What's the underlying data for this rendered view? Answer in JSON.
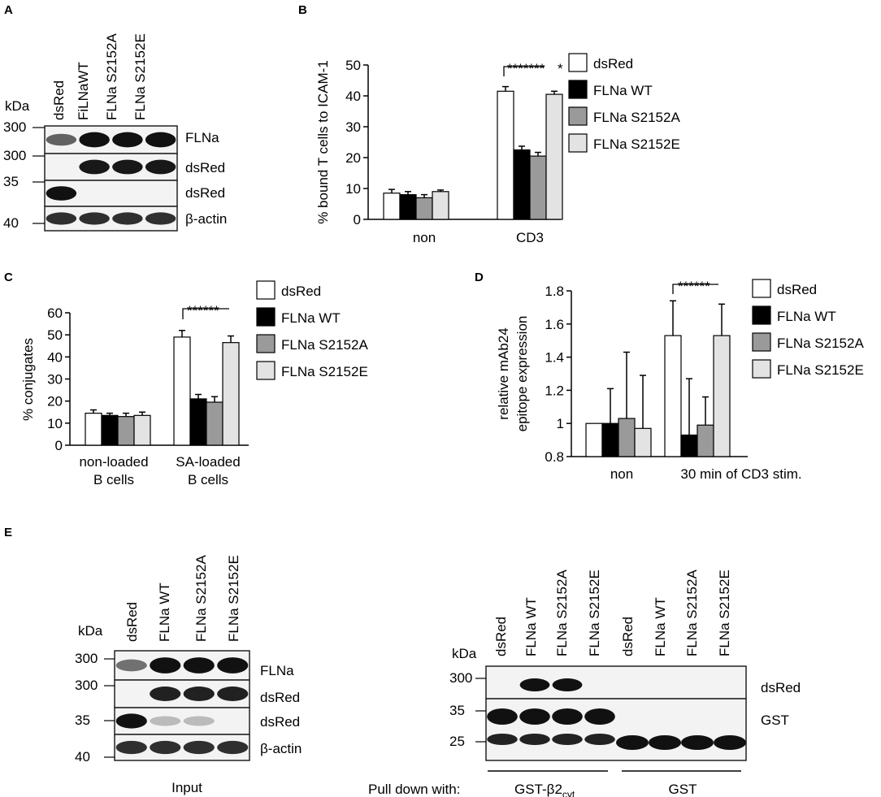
{
  "panels": {
    "A": "A",
    "B": "B",
    "C": "C",
    "D": "D",
    "E": "E"
  },
  "blotA": {
    "kda_label": "kDa",
    "lanes": [
      "dsRed",
      "FiLNaWT",
      "FLNa S2152A",
      "FLNa S2152E"
    ],
    "rows": [
      {
        "mw": "300",
        "label": "FLNa",
        "bands": [
          0.45,
          1,
          1,
          1
        ]
      },
      {
        "mw": "300",
        "label": "dsRed",
        "bands": [
          0,
          0.95,
          0.95,
          0.95
        ]
      },
      {
        "mw": "35",
        "label": "dsRed",
        "bands": [
          1,
          0,
          0,
          0
        ]
      },
      {
        "mw": "40",
        "label": "β-actin",
        "bands": [
          0.8,
          0.8,
          0.8,
          0.8
        ]
      }
    ]
  },
  "chart_data": [
    {
      "panel": "B",
      "type": "bar",
      "categories": [
        "non",
        "CD3"
      ],
      "ylabel": "% bound T cells  to ICAM-1",
      "ylim": [
        0,
        50
      ],
      "yticks": [
        0,
        10,
        20,
        30,
        40,
        50
      ],
      "series": [
        {
          "name": "dsRed",
          "color": "#ffffff",
          "values": [
            8.5,
            41.5
          ],
          "errors": [
            1.2,
            1.5
          ]
        },
        {
          "name": "FLNa WT",
          "color": "#000000",
          "values": [
            8.0,
            22.5
          ],
          "errors": [
            1.0,
            1.2
          ]
        },
        {
          "name": "FLNa S2152A",
          "color": "#9a9a9a",
          "values": [
            7.0,
            20.5
          ],
          "errors": [
            1.0,
            1.2
          ]
        },
        {
          "name": "FLNa S2152E",
          "color": "#e3e3e3",
          "values": [
            9.0,
            40.5
          ],
          "errors": [
            0.5,
            1.0
          ]
        }
      ],
      "significance": "*******",
      "significance_extra": "*"
    },
    {
      "panel": "C",
      "type": "bar",
      "categories": [
        "non-loaded\nB cells",
        "SA-loaded\nB cells"
      ],
      "category_lines": [
        [
          "non-loaded",
          "B cells"
        ],
        [
          "SA-loaded",
          "B cells"
        ]
      ],
      "ylabel": "% conjugates",
      "ylim": [
        0,
        60
      ],
      "yticks": [
        0,
        10,
        20,
        30,
        40,
        50,
        60
      ],
      "series": [
        {
          "name": "dsRed",
          "color": "#ffffff",
          "values": [
            14.5,
            49
          ],
          "errors": [
            1.5,
            3.0
          ]
        },
        {
          "name": "FLNa WT",
          "color": "#000000",
          "values": [
            13.5,
            21
          ],
          "errors": [
            1.0,
            2.0
          ]
        },
        {
          "name": "FLNa S2152A",
          "color": "#9a9a9a",
          "values": [
            13,
            19.5
          ],
          "errors": [
            1.5,
            2.5
          ]
        },
        {
          "name": "FLNa S2152E",
          "color": "#e3e3e3",
          "values": [
            13.5,
            46.5
          ],
          "errors": [
            1.5,
            3.0
          ]
        }
      ],
      "significance": "******"
    },
    {
      "panel": "D",
      "type": "bar",
      "categories": [
        "non",
        "30 min of CD3 stim."
      ],
      "ylabel_lines": [
        "relative mAb24",
        "epitope expression"
      ],
      "ylim": [
        0.8,
        1.8
      ],
      "yticks": [
        0.8,
        1,
        1.2,
        1.4,
        1.6,
        1.8
      ],
      "ytick_labels": [
        "0.8",
        "1",
        "1.2",
        "1.4",
        "1.6",
        "1.8"
      ],
      "series": [
        {
          "name": "dsRed",
          "color": "#ffffff",
          "values": [
            1.0,
            1.53
          ],
          "errors": [
            0,
            0.21
          ]
        },
        {
          "name": "FLNa WT",
          "color": "#000000",
          "values": [
            1.0,
            0.93
          ],
          "errors": [
            0.21,
            0.34
          ]
        },
        {
          "name": "FLNa S2152A",
          "color": "#9a9a9a",
          "values": [
            1.03,
            0.99
          ],
          "errors": [
            0.4,
            0.17
          ]
        },
        {
          "name": "FLNa S2152E",
          "color": "#e3e3e3",
          "values": [
            0.97,
            1.53
          ],
          "errors": [
            0.32,
            0.19
          ]
        }
      ],
      "significance": "******"
    }
  ],
  "blotE_left": {
    "kda_label": "kDa",
    "lanes": [
      "dsRed",
      "FLNa WT",
      "FLNa S2152A",
      "FLNa S2152E"
    ],
    "caption": "Input",
    "rows": [
      {
        "mw": "300",
        "label": "FLNa",
        "bands": [
          0.35,
          1,
          1,
          1
        ]
      },
      {
        "mw": "300",
        "label": "dsRed",
        "bands": [
          0,
          0.9,
          0.9,
          0.9
        ]
      },
      {
        "mw": "35",
        "label": "dsRed",
        "bands": [
          1,
          0.15,
          0.15,
          0
        ]
      },
      {
        "mw": "40",
        "label": "β-actin",
        "bands": [
          0.8,
          0.8,
          0.8,
          0.8
        ]
      }
    ]
  },
  "blotE_right": {
    "kda_label": "kDa",
    "lanes": [
      "dsRed",
      "FLNa WT",
      "FLNa S2152A",
      "FLNa S2152E",
      "dsRed",
      "FLNa WT",
      "FLNa S2152A",
      "FLNa S2152E"
    ],
    "row_labels": [
      "dsRed",
      "GST"
    ],
    "mw_labels": [
      "300",
      "35",
      "25"
    ],
    "pull_down_label": "Pull down with:",
    "group1_label": "GST-β2",
    "group1_sub": "cyt",
    "group2_label": "GST"
  }
}
